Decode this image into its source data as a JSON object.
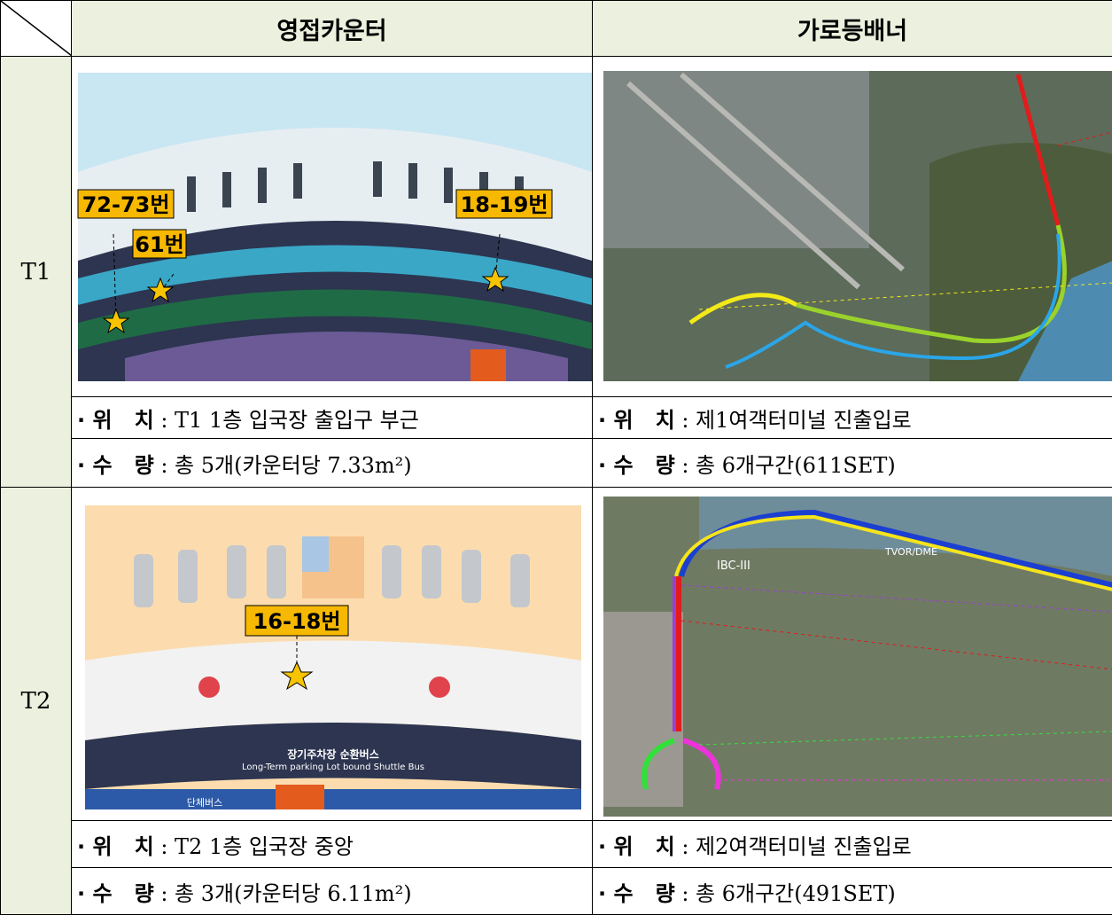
{
  "header": {
    "col1": "영접카운터",
    "col2": "가로등배너"
  },
  "rows": [
    {
      "label": "T1",
      "counter": {
        "map_labels": [
          "72-73번",
          "61번",
          "18-19번"
        ],
        "location": {
          "label": "· 위   치",
          "value": " : T1 1층 입국장 출입구 부근"
        },
        "quantity": {
          "label": "· 수   량",
          "value": " : 총 5개(카운터당 7.33m²)"
        }
      },
      "banner": {
        "location": {
          "label": "· 위   치",
          "value": " : 제1여객터미널 진출입로"
        },
        "quantity": {
          "label": "· 수   량",
          "value": " : 총 6개구간(611SET)"
        }
      }
    },
    {
      "label": "T2",
      "counter": {
        "map_labels": [
          "16-18번",
          "장기주차장 순환버스",
          "Long-Term parking Lot bound Shuttle Bus",
          "단체버스"
        ],
        "location": {
          "label": "· 위   치",
          "value": " : T2 1층 입국장 중앙"
        },
        "quantity": {
          "label": "· 수   량",
          "value": " : 총 3개(카운터당 6.11m²)"
        }
      },
      "banner": {
        "map_labels": [
          "IBC-III",
          "TVOR/DME"
        ],
        "location": {
          "label": "· 위   치",
          "value": " : 제2여객터미널 진출입로"
        },
        "quantity": {
          "label": "· 수   량",
          "value": " : 총 6개구간(491SET)"
        }
      }
    }
  ]
}
